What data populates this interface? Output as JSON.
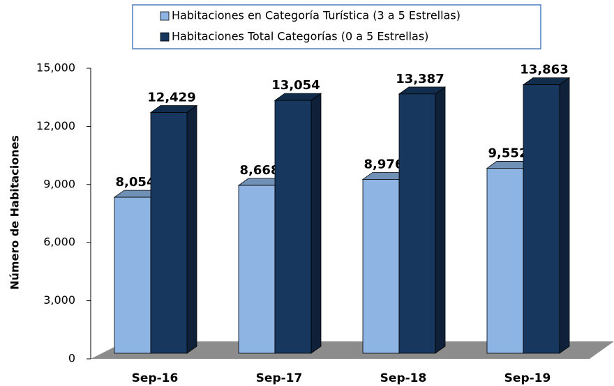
{
  "chart_data": {
    "type": "bar3d",
    "y_label": "Número de Habitaciones",
    "categories": [
      "Sep-16",
      "Sep-17",
      "Sep-18",
      "Sep-19"
    ],
    "series": [
      {
        "name": "Habitaciones en Categoría Turística (3 a 5 Estrellas)",
        "color": "#8db4e2",
        "values": [
          8054,
          8668,
          8976,
          9552
        ],
        "value_labels": [
          "8,054",
          "8,668",
          "8,976",
          "9,552"
        ]
      },
      {
        "name": "Habitaciones Total Categorías (0 a 5 Estrellas)",
        "color": "#17375e",
        "values": [
          12429,
          13054,
          13387,
          13863
        ],
        "value_labels": [
          "12,429",
          "13,054",
          "13,387",
          "13,863"
        ]
      }
    ],
    "ylim": [
      0,
      15000
    ],
    "yticks": [
      0,
      {
        "value": 3000,
        "label": "3,000"
      },
      {
        "value": 6000,
        "label": "6,000"
      },
      {
        "value": 9000,
        "label": "9,000"
      },
      {
        "value": 12000,
        "label": "12,000"
      },
      {
        "value": 15000,
        "label": "15,000"
      }
    ],
    "legend": "top"
  }
}
